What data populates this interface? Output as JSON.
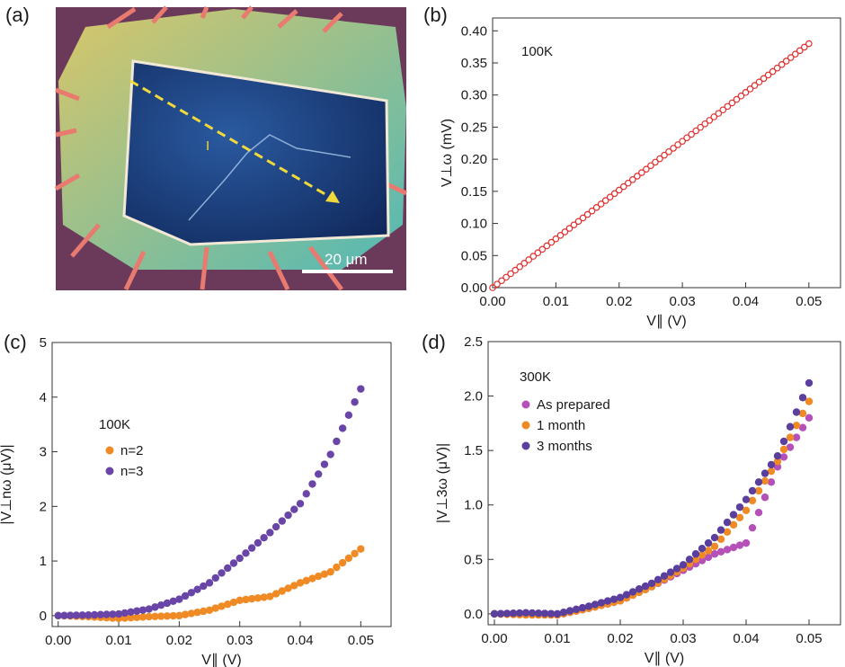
{
  "figure": {
    "panels": {
      "a": {
        "letter": "(a)",
        "scale_bar_label": "20 μm",
        "direction_marker": "I",
        "colors": {
          "substrate": "#6b3a5a",
          "flake": "#1a3b7a",
          "arrow": "#f2d93b",
          "electrode": "#e87a70"
        }
      },
      "b": {
        "letter": "(b)",
        "annotation": "100K"
      },
      "c": {
        "letter": "(c)",
        "annotation": "100K",
        "legend": [
          "n=2",
          "n=3"
        ]
      },
      "d": {
        "letter": "(d)",
        "annotation": "300K",
        "legend": [
          "As prepared",
          "1 month",
          "3 months"
        ]
      }
    }
  },
  "chart_data": [
    {
      "panel": "b",
      "type": "scatter",
      "xlabel": "V∥ (V)",
      "ylabel": "V⊥ω (mV)",
      "xlim": [
        0,
        0.055
      ],
      "ylim": [
        0,
        0.42
      ],
      "xticks": [
        "0.00",
        "0.01",
        "0.02",
        "0.03",
        "0.04",
        "0.05"
      ],
      "yticks": [
        "0.00",
        "0.05",
        "0.10",
        "0.15",
        "0.20",
        "0.25",
        "0.30",
        "0.35",
        "0.40"
      ],
      "series": [
        {
          "color": "#e03030",
          "marker": "open-circle",
          "x": [
            0.0,
            0.005,
            0.01,
            0.015,
            0.02,
            0.025,
            0.03,
            0.035,
            0.04,
            0.045,
            0.05
          ],
          "y": [
            0.0,
            0.038,
            0.076,
            0.114,
            0.152,
            0.19,
            0.228,
            0.266,
            0.304,
            0.342,
            0.38
          ]
        }
      ]
    },
    {
      "panel": "c",
      "type": "scatter",
      "xlabel": "V∥ (V)",
      "ylabel": "|V⊥nω (μV)|",
      "xlim": [
        -0.001,
        0.055
      ],
      "ylim": [
        -0.2,
        5
      ],
      "xticks": [
        "0.00",
        "0.01",
        "0.02",
        "0.03",
        "0.04",
        "0.05"
      ],
      "yticks": [
        "0",
        "1",
        "2",
        "3",
        "4",
        "5"
      ],
      "series": [
        {
          "name": "n=2",
          "color": "#f08a24",
          "x": [
            0.0,
            0.005,
            0.01,
            0.015,
            0.02,
            0.025,
            0.03,
            0.035,
            0.04,
            0.045,
            0.05
          ],
          "y": [
            0.0,
            -0.02,
            -0.05,
            -0.02,
            0.0,
            0.1,
            0.28,
            0.35,
            0.6,
            0.8,
            1.22
          ]
        },
        {
          "name": "n=3",
          "color": "#6a45a8",
          "x": [
            0.0,
            0.005,
            0.01,
            0.015,
            0.02,
            0.025,
            0.03,
            0.035,
            0.04,
            0.045,
            0.05
          ],
          "y": [
            0.0,
            0.01,
            0.03,
            0.12,
            0.3,
            0.6,
            1.05,
            1.52,
            2.05,
            2.95,
            4.15
          ]
        }
      ]
    },
    {
      "panel": "d",
      "type": "scatter",
      "xlabel": "V∥ (V)",
      "ylabel": "|V⊥3ω (μV)|",
      "xlim": [
        -0.001,
        0.055
      ],
      "ylim": [
        -0.1,
        2.5
      ],
      "xticks": [
        "0.00",
        "0.01",
        "0.02",
        "0.03",
        "0.04",
        "0.05"
      ],
      "yticks": [
        "0.0",
        "0.5",
        "1.0",
        "1.5",
        "2.0",
        "2.5"
      ],
      "series": [
        {
          "name": "As prepared",
          "color": "#b550b8",
          "x": [
            0.0,
            0.005,
            0.01,
            0.015,
            0.02,
            0.025,
            0.03,
            0.035,
            0.04,
            0.045,
            0.05
          ],
          "y": [
            0.0,
            0.0,
            -0.01,
            0.05,
            0.12,
            0.25,
            0.4,
            0.55,
            0.65,
            1.35,
            1.8
          ]
        },
        {
          "name": "1 month",
          "color": "#f08a24",
          "x": [
            0.0,
            0.005,
            0.01,
            0.015,
            0.02,
            0.025,
            0.03,
            0.035,
            0.04,
            0.045,
            0.05
          ],
          "y": [
            0.0,
            -0.01,
            -0.01,
            0.05,
            0.12,
            0.25,
            0.42,
            0.62,
            0.95,
            1.4,
            1.95
          ]
        },
        {
          "name": "3 months",
          "color": "#5a3f9e",
          "x": [
            0.0,
            0.005,
            0.01,
            0.015,
            0.02,
            0.025,
            0.03,
            0.035,
            0.04,
            0.045,
            0.05
          ],
          "y": [
            0.0,
            0.01,
            0.0,
            0.07,
            0.15,
            0.28,
            0.45,
            0.7,
            1.05,
            1.45,
            2.12
          ]
        }
      ]
    }
  ]
}
